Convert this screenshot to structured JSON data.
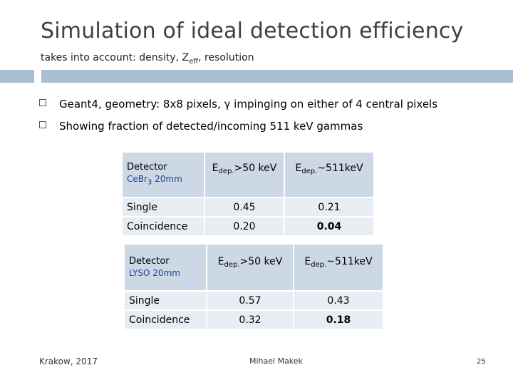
{
  "slide": {
    "title": "Simulation of ideal detection efficiency",
    "subtitle_prefix": "takes into account: density, Z",
    "subtitle_sub": "eff",
    "subtitle_suffix": ", resolution"
  },
  "bullets": [
    "Geant4, geometry: 8x8 pixels, γ impinging on either of 4 central pixels",
    "Showing fraction of detected/incoming 511 keV gammas"
  ],
  "tables": [
    {
      "detector_label": "Detector",
      "crystal_main": "CeBr",
      "crystal_sub": "3",
      "crystal_size": " 20mm",
      "crystal_color": "#1f3f8f",
      "col1_main": "E",
      "col1_sub": "dep.",
      "col1_rest": ">50 keV",
      "col2_main": "E",
      "col2_sub": "dep.",
      "col2_rest": "~511keV",
      "rows": [
        {
          "label": "Single",
          "v1": "0.45",
          "v2": "0.21"
        },
        {
          "label": "Coincidence",
          "v1": "0.20",
          "v2": "0.04"
        }
      ]
    },
    {
      "detector_label": "Detector",
      "crystal_main": "LYSO 20mm",
      "crystal_color": "#1f3f8f",
      "col1_main": "E",
      "col1_sub": "dep.",
      "col1_rest": ">50 keV",
      "col2_main": "E",
      "col2_sub": "dep.",
      "col2_rest": "~511keV",
      "rows": [
        {
          "label": "Single",
          "v1": "0.57",
          "v2": "0.43"
        },
        {
          "label": "Coincidence",
          "v1": "0.32",
          "v2": "0.18"
        }
      ]
    }
  ],
  "footer": {
    "left": "Krakow, 2017",
    "center": "Mihael Makek",
    "page": "25"
  },
  "colors": {
    "accent_bar": "#a9bdd3",
    "header_cell": "#cdd8e7",
    "body_cell": "#e8edf4"
  }
}
